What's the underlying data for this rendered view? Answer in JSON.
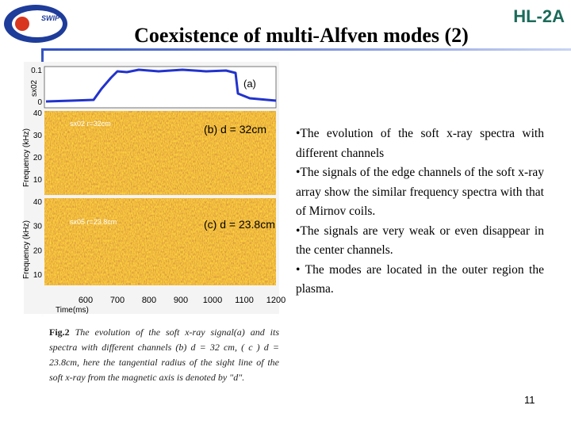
{
  "logo": "SWIP",
  "badge": "HL-2A",
  "title": "Coexistence of multi-Alfven modes (2)",
  "figure": {
    "panel_a": {
      "label": "(a)",
      "y_label": "sx02",
      "yticks": [
        "0.1",
        "0"
      ]
    },
    "panel_b": {
      "label": "(b) d = 32cm",
      "channel": "sx02   r=32cm",
      "y_label": "Frequency (kHz)",
      "yticks": [
        "40",
        "30",
        "20",
        "10"
      ]
    },
    "panel_c": {
      "label": "(c) d = 23.8cm",
      "channel": "sx05   r=23.8cm",
      "y_label": "Frequency (kHz)",
      "yticks": [
        "40",
        "30",
        "20",
        "10"
      ]
    },
    "x_label": "Time(ms)",
    "xticks": [
      "600",
      "700",
      "800",
      "900",
      "1000",
      "1100",
      "1200"
    ]
  },
  "caption": {
    "label": "Fig.2",
    "text": " The evolution of the soft x-ray signal(a)  and its  spectra with different channels (b) d = 32 cm, ( c ) d = 23.8cm, here the tangential radius of the sight line of the soft x-ray from the magnetic axis is denoted by \"d\"."
  },
  "bullets": [
    "•The evolution of the soft x-ray spectra with different channels",
    "•The signals of the edge channels of the soft x-ray array show the similar frequency spectra with that of Mirnov coils.",
    "•The signals are very weak or even disappear in the center channels.",
    "• The modes are located in the outer region  the plasma."
  ],
  "page_number": "11"
}
